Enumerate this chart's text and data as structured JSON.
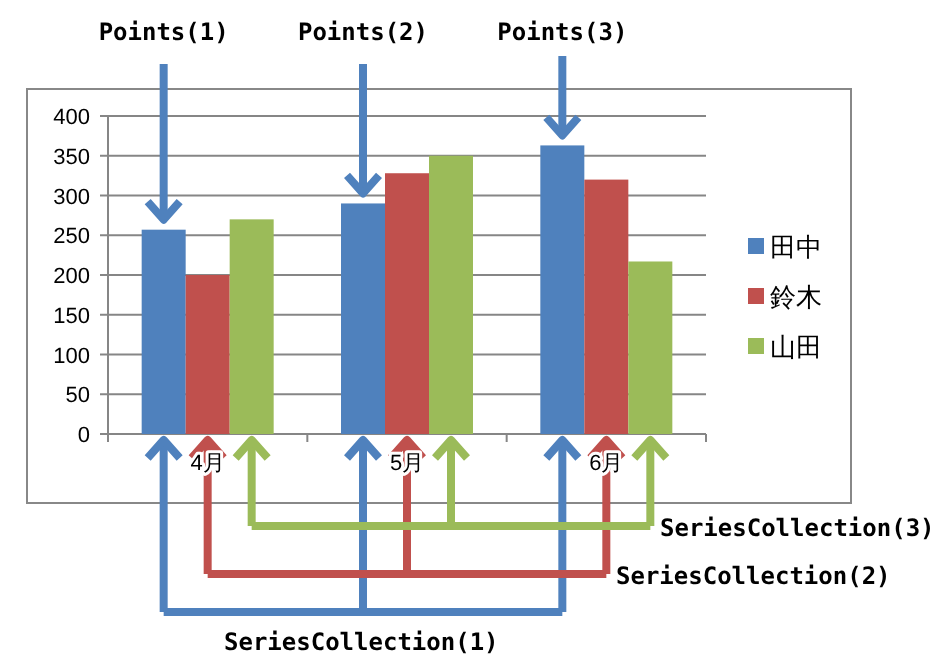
{
  "chart_data": {
    "type": "bar",
    "categories": [
      "4月",
      "5月",
      "6月"
    ],
    "series": [
      {
        "name": "田中",
        "color": "#4f81bd",
        "values": [
          257,
          290,
          363
        ]
      },
      {
        "name": "鈴木",
        "color": "#c0504d",
        "values": [
          200,
          328,
          320
        ]
      },
      {
        "name": "山田",
        "color": "#9bbb59",
        "values": [
          270,
          350,
          217
        ]
      }
    ],
    "ylim": [
      0,
      400
    ],
    "yticks": [
      0,
      50,
      100,
      150,
      200,
      250,
      300,
      350,
      400
    ],
    "grid": "y",
    "legend": "right",
    "annotations": [
      "Points(1)",
      "Points(2)",
      "Points(3)",
      "SeriesCollection(1)",
      "SeriesCollection(2)",
      "SeriesCollection(3)"
    ]
  }
}
